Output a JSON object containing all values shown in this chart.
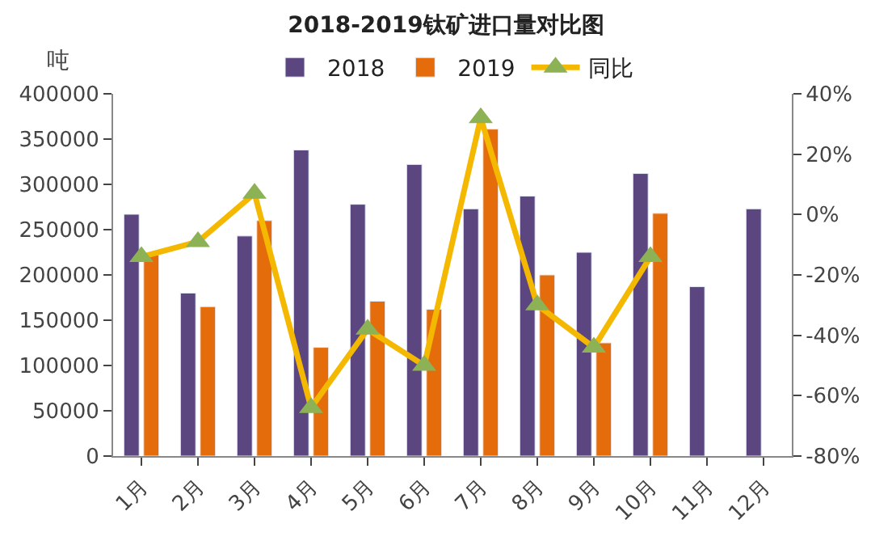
{
  "chart_data": {
    "type": "bar",
    "title": "2018-2019钛矿进口量对比图",
    "ylabel": "吨",
    "categories": [
      "1月",
      "2月",
      "3月",
      "4月",
      "5月",
      "6月",
      "7月",
      "8月",
      "9月",
      "10月",
      "11月",
      "12月"
    ],
    "series": [
      {
        "name": "2018",
        "color": "#5b4680",
        "values": [
          267000,
          180000,
          243000,
          338000,
          278000,
          322000,
          273000,
          287000,
          225000,
          312000,
          187000,
          273000
        ]
      },
      {
        "name": "2019",
        "color": "#e46c0a",
        "values": [
          222000,
          165000,
          260000,
          120000,
          171000,
          162000,
          361000,
          200000,
          125000,
          268000,
          null,
          null
        ]
      },
      {
        "name": "同比",
        "type": "line",
        "axis": "y2",
        "color": "#f5b800",
        "values": [
          -14,
          -9,
          7,
          -64,
          -38,
          -50,
          32,
          -30,
          -44,
          -14,
          null,
          null
        ]
      }
    ],
    "ylim": [
      0,
      400000
    ],
    "yticks": [
      0,
      50000,
      100000,
      150000,
      200000,
      250000,
      300000,
      350000,
      400000
    ],
    "y2lim": [
      -80,
      40
    ],
    "y2ticks": [
      {
        "value": -80,
        "label": "-80%"
      },
      {
        "value": -60,
        "label": "-60%"
      },
      {
        "value": -40,
        "label": "-40%"
      },
      {
        "value": -20,
        "label": "-20%"
      },
      {
        "value": 0,
        "label": "0%"
      },
      {
        "value": 20,
        "label": "20%"
      },
      {
        "value": 40,
        "label": "40%"
      }
    ],
    "marker": "triangle",
    "legend": "top"
  }
}
